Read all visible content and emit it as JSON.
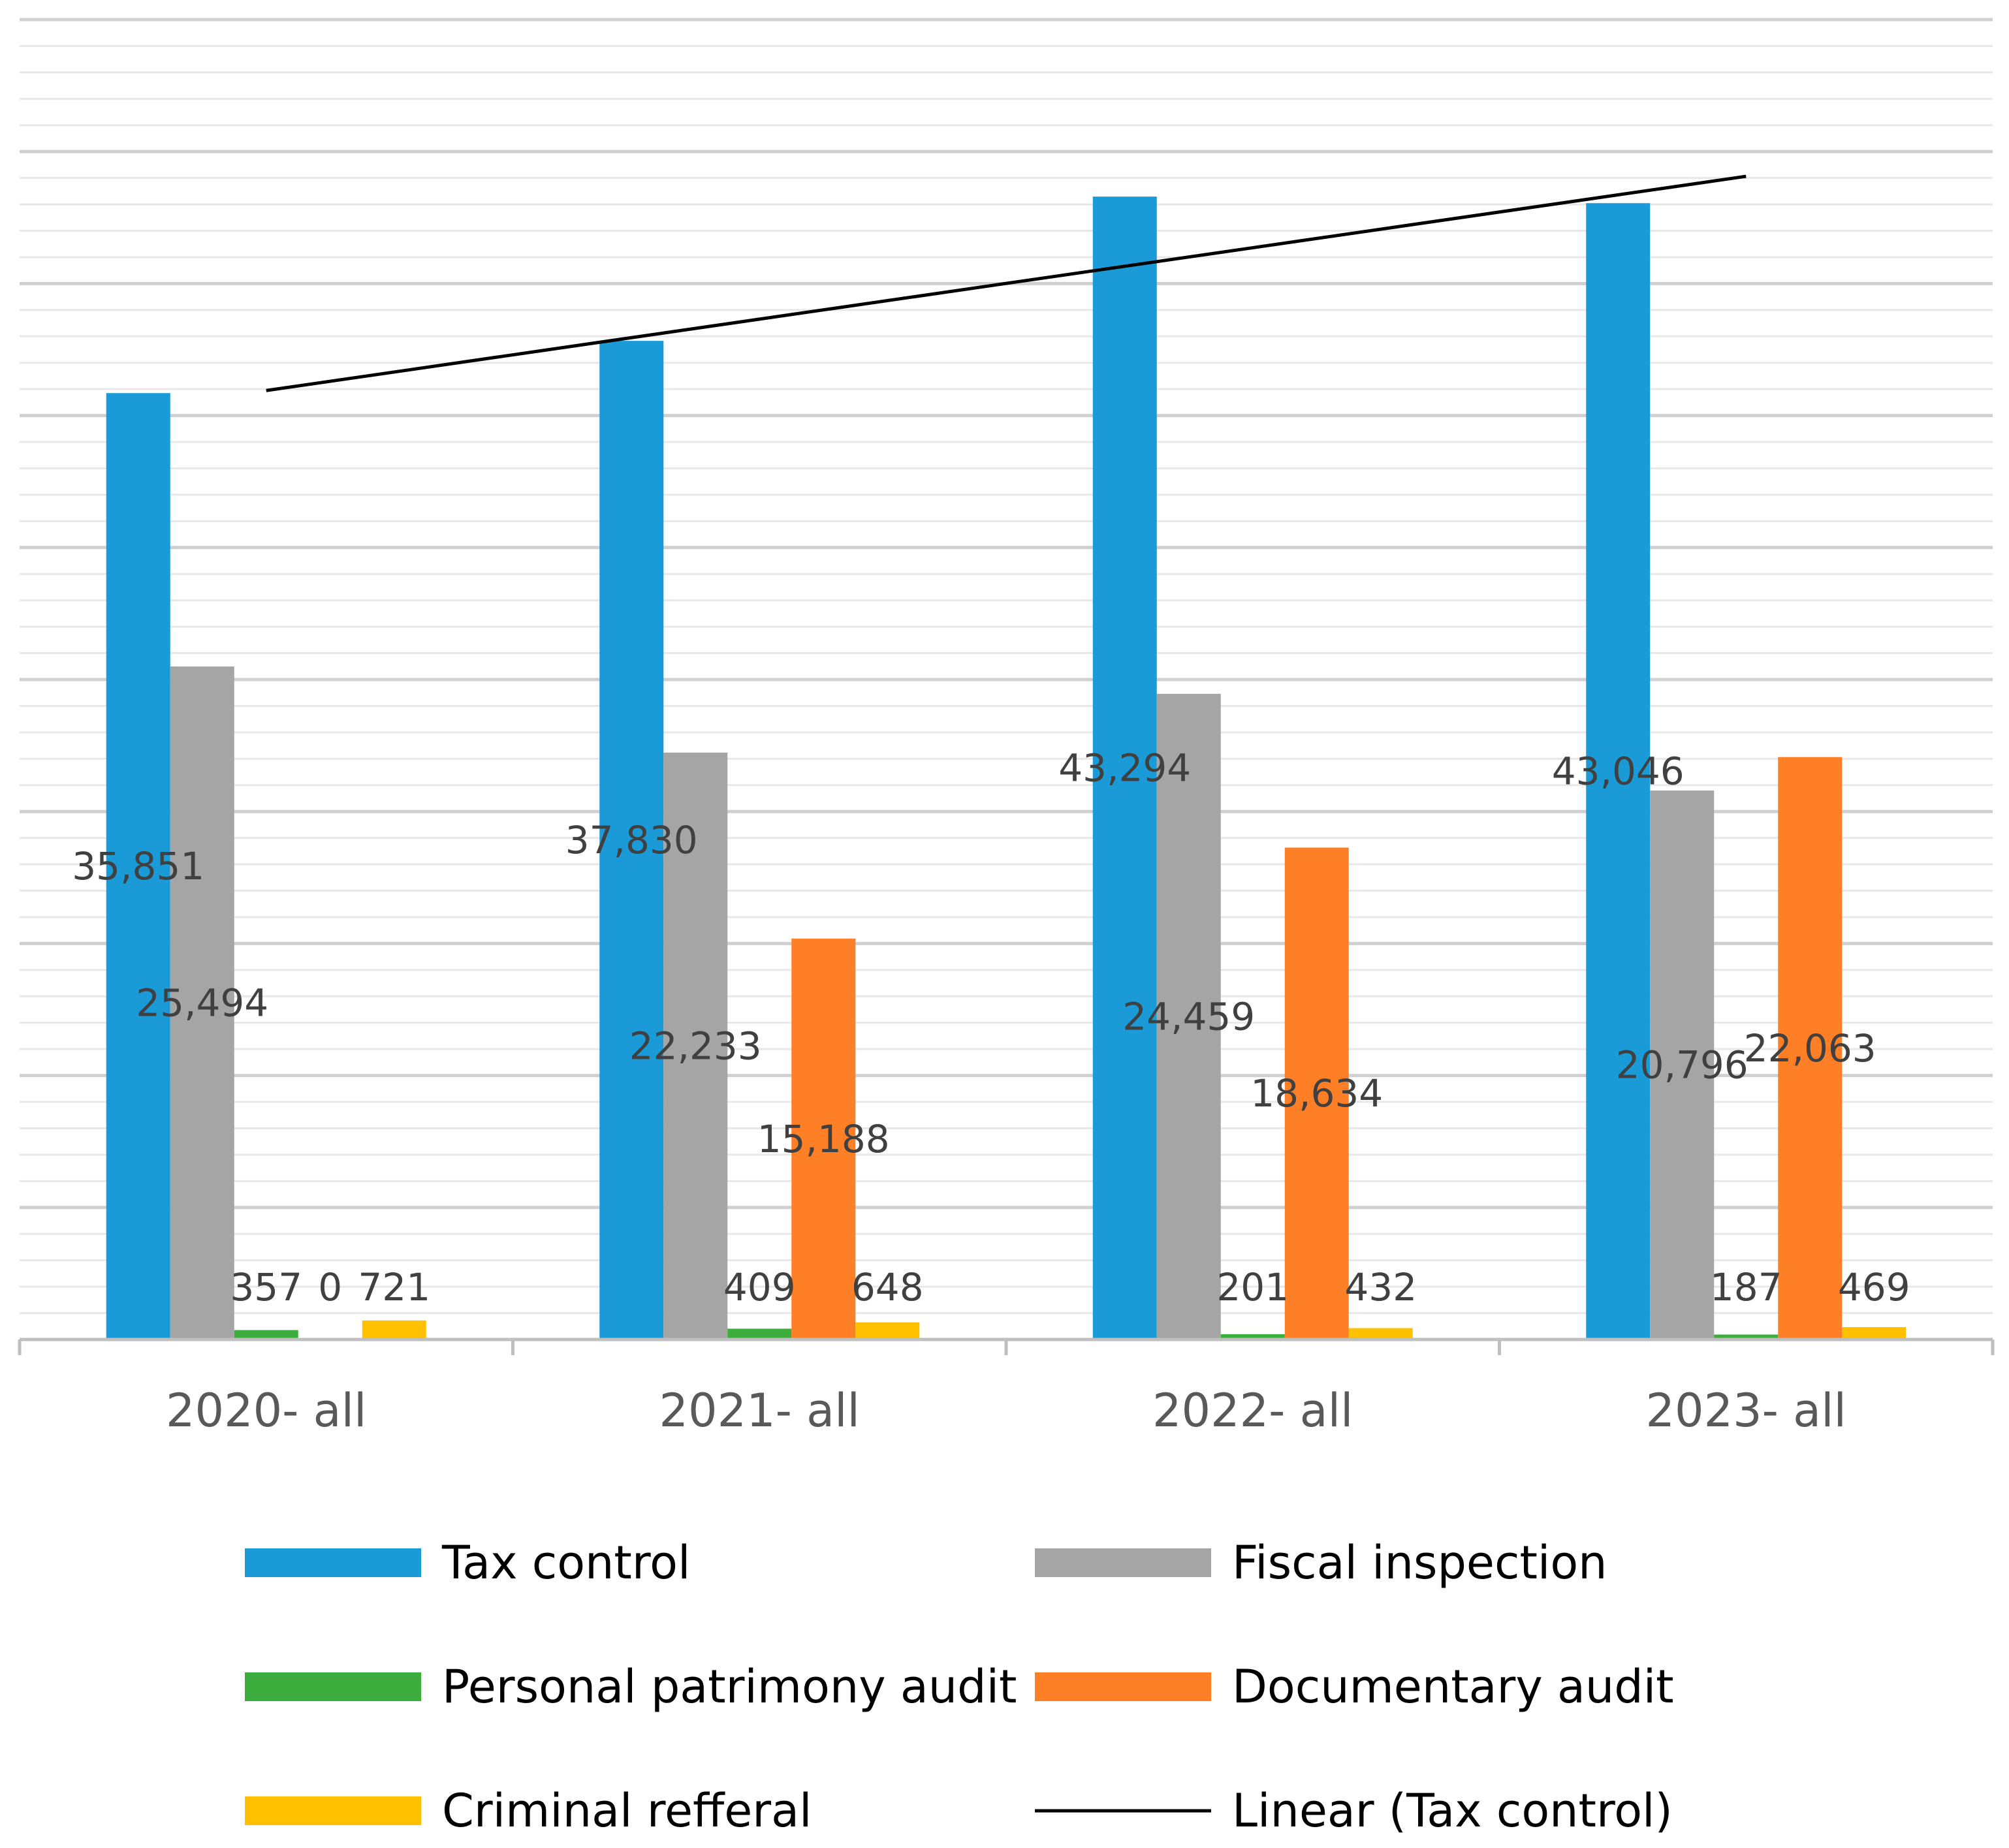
{
  "chart_data": {
    "type": "bar",
    "title": "",
    "xlabel": "",
    "ylabel": "",
    "ylim": [
      0,
      50000
    ],
    "grid": true,
    "categories": [
      "2020- all",
      "2021- all",
      "2022- all",
      "2023- all"
    ],
    "series": [
      {
        "name": "Tax control",
        "color": "#1A9BD7",
        "values": [
          35851,
          37830,
          43294,
          43046
        ],
        "labels": [
          "35,851",
          "37,830",
          "43,294",
          "43,046"
        ]
      },
      {
        "name": "Fiscal inspection",
        "color": "#A5A5A5",
        "values": [
          25494,
          22233,
          24459,
          20796
        ],
        "labels": [
          "25,494",
          "22,233",
          "24,459",
          "20,796"
        ]
      },
      {
        "name": "Personal patrimony audit",
        "color": "#3DAE3D",
        "values": [
          357,
          409,
          201,
          187
        ],
        "labels": [
          "357",
          "409",
          "201",
          "187"
        ]
      },
      {
        "name": "Documentary audit",
        "color": "#FF7F27",
        "values": [
          0,
          15188,
          18634,
          22063
        ],
        "labels": [
          "0",
          "15,188",
          "18,634",
          "22,063"
        ]
      },
      {
        "name": "Criminal refferal",
        "color": "#FFC000",
        "values": [
          721,
          648,
          432,
          469
        ],
        "labels": [
          "721",
          "648",
          "432",
          "469"
        ]
      }
    ],
    "trendline": {
      "name": "Linear (Tax control)",
      "series": "Tax control",
      "type": "linear",
      "color": "#000000"
    },
    "legend": {
      "position": "bottom",
      "columns": 2
    }
  }
}
